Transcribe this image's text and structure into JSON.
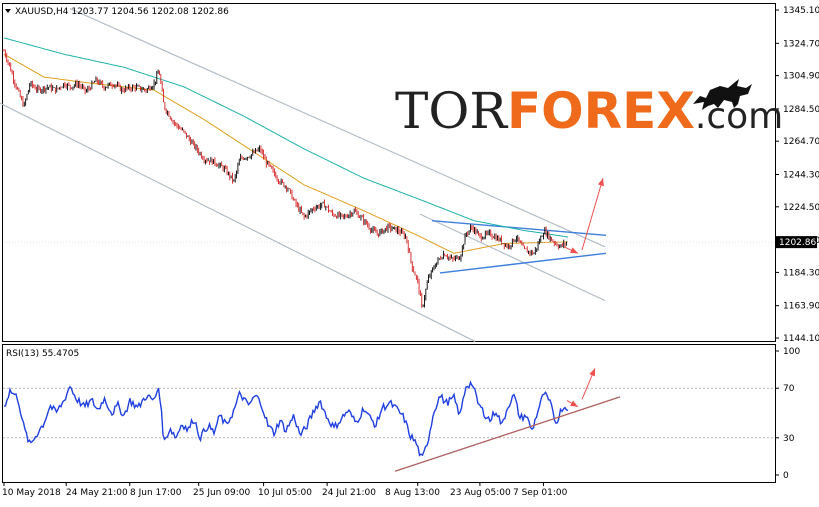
{
  "chart_data": [
    {
      "type": "line",
      "subtype": "candlestick",
      "title": "XAUUSD,H4  1203.77 1204.56 1202.08 1202.86",
      "symbol": "XAUUSD,H4",
      "ohlc": {
        "open": 1203.77,
        "high": 1204.56,
        "low": 1202.08,
        "close": 1202.86
      },
      "current_price_label": "1202.86",
      "ylim": [
        1144.1,
        1345.1
      ],
      "y_ticks": [
        "1345.10",
        "1324.70",
        "1304.90",
        "1284.50",
        "1264.70",
        "1244.30",
        "1224.50",
        "1204.10",
        "1184.30",
        "1163.90",
        "1144.10"
      ],
      "x_ticks": [
        "10 May 2018",
        "24 May 21:00",
        "8 Jun 17:00",
        "25 Jun 09:00",
        "10 Jul 05:00",
        "24 Jul 21:00",
        "8 Aug 13:00",
        "23 Aug 05:00",
        "7 Sep 01:00"
      ],
      "price_anchors": [
        [
          0,
          1320
        ],
        [
          6,
          1310
        ],
        [
          10,
          1302
        ],
        [
          16,
          1292
        ],
        [
          20,
          1286
        ],
        [
          26,
          1300
        ],
        [
          34,
          1296
        ],
        [
          44,
          1298
        ],
        [
          52,
          1296
        ],
        [
          60,
          1300
        ],
        [
          66,
          1298
        ],
        [
          74,
          1300
        ],
        [
          82,
          1295
        ],
        [
          92,
          1302
        ],
        [
          100,
          1298
        ],
        [
          110,
          1300
        ],
        [
          118,
          1296
        ],
        [
          130,
          1298
        ],
        [
          142,
          1296
        ],
        [
          150,
          1300
        ],
        [
          155,
          1308
        ],
        [
          160,
          1286
        ],
        [
          170,
          1276
        ],
        [
          180,
          1270
        ],
        [
          190,
          1262
        ],
        [
          200,
          1254
        ],
        [
          210,
          1252
        ],
        [
          220,
          1248
        ],
        [
          230,
          1240
        ],
        [
          236,
          1254
        ],
        [
          246,
          1256
        ],
        [
          256,
          1260
        ],
        [
          262,
          1252
        ],
        [
          270,
          1245
        ],
        [
          276,
          1240
        ],
        [
          284,
          1236
        ],
        [
          290,
          1228
        ],
        [
          300,
          1218
        ],
        [
          310,
          1224
        ],
        [
          320,
          1226
        ],
        [
          328,
          1220
        ],
        [
          340,
          1218
        ],
        [
          350,
          1222
        ],
        [
          360,
          1216
        ],
        [
          368,
          1210
        ],
        [
          374,
          1208
        ],
        [
          384,
          1212
        ],
        [
          394,
          1210
        ],
        [
          402,
          1206
        ],
        [
          408,
          1188
        ],
        [
          414,
          1178
        ],
        [
          418,
          1162
        ],
        [
          424,
          1180
        ],
        [
          432,
          1190
        ],
        [
          440,
          1196
        ],
        [
          448,
          1192
        ],
        [
          456,
          1194
        ],
        [
          462,
          1208
        ],
        [
          468,
          1212
        ],
        [
          476,
          1206
        ],
        [
          486,
          1208
        ],
        [
          496,
          1204
        ],
        [
          504,
          1200
        ],
        [
          512,
          1206
        ],
        [
          520,
          1198
        ],
        [
          530,
          1196
        ],
        [
          540,
          1210
        ],
        [
          548,
          1204
        ],
        [
          556,
          1200
        ],
        [
          564,
          1203
        ]
      ],
      "moving_averages": [
        {
          "color": "#e0a020",
          "anchors": [
            [
              0,
              1318
            ],
            [
              40,
              1304
            ],
            [
              90,
              1300
            ],
            [
              150,
              1296
            ],
            [
              200,
              1278
            ],
            [
              250,
              1258
            ],
            [
              300,
              1238
            ],
            [
              360,
              1222
            ],
            [
              410,
              1208
            ],
            [
              450,
              1196
            ],
            [
              500,
              1202
            ],
            [
              564,
              1203
            ]
          ]
        },
        {
          "color": "#20b2aa",
          "anchors": [
            [
              0,
              1328
            ],
            [
              60,
              1318
            ],
            [
              120,
              1310
            ],
            [
              180,
              1298
            ],
            [
              240,
              1280
            ],
            [
              300,
              1260
            ],
            [
              360,
              1242
            ],
            [
              420,
              1228
            ],
            [
              470,
              1216
            ],
            [
              520,
              1210
            ],
            [
              564,
              1206
            ]
          ]
        }
      ],
      "trend_lines": [
        {
          "color": "#b4bec8",
          "from": [
            70,
            1346
          ],
          "to": [
            605,
            1200
          ]
        },
        {
          "color": "#b4bec8",
          "from": [
            0,
            1288
          ],
          "to": [
            475,
            1142
          ]
        },
        {
          "color": "#b4bec8",
          "from": [
            420,
            1220
          ],
          "to": [
            605,
            1167
          ]
        },
        {
          "color": "#3f7fdc",
          "from": [
            432,
            1216
          ],
          "to": [
            606,
            1207
          ]
        },
        {
          "color": "#3f7fdc",
          "from": [
            440,
            1184
          ],
          "to": [
            606,
            1196
          ]
        }
      ],
      "forecast_arrows": [
        {
          "color": "#f05050",
          "from": [
            564,
            1200
          ],
          "to": [
            578,
            1196
          ]
        },
        {
          "color": "#f05050",
          "from": [
            582,
            1198
          ],
          "to": [
            603,
            1242
          ]
        }
      ]
    },
    {
      "type": "line",
      "title": "RSI(13) 55.4705",
      "indicator": "RSI(13)",
      "value": 55.4705,
      "ylim": [
        0,
        100
      ],
      "y_ticks": [
        "100",
        "70",
        "30",
        "0"
      ],
      "levels": [
        70,
        30
      ],
      "rsi_anchors": [
        [
          0,
          55
        ],
        [
          6,
          68
        ],
        [
          14,
          62
        ],
        [
          20,
          38
        ],
        [
          26,
          24
        ],
        [
          32,
          32
        ],
        [
          40,
          42
        ],
        [
          46,
          56
        ],
        [
          52,
          50
        ],
        [
          60,
          60
        ],
        [
          66,
          72
        ],
        [
          72,
          62
        ],
        [
          80,
          55
        ],
        [
          88,
          60
        ],
        [
          94,
          52
        ],
        [
          100,
          62
        ],
        [
          108,
          50
        ],
        [
          114,
          56
        ],
        [
          120,
          48
        ],
        [
          126,
          60
        ],
        [
          134,
          54
        ],
        [
          142,
          64
        ],
        [
          150,
          60
        ],
        [
          155,
          72
        ],
        [
          160,
          26
        ],
        [
          166,
          38
        ],
        [
          172,
          30
        ],
        [
          178,
          42
        ],
        [
          184,
          36
        ],
        [
          190,
          46
        ],
        [
          196,
          30
        ],
        [
          204,
          40
        ],
        [
          210,
          34
        ],
        [
          216,
          48
        ],
        [
          222,
          40
        ],
        [
          230,
          52
        ],
        [
          236,
          66
        ],
        [
          244,
          56
        ],
        [
          252,
          64
        ],
        [
          258,
          56
        ],
        [
          264,
          40
        ],
        [
          270,
          34
        ],
        [
          276,
          44
        ],
        [
          282,
          36
        ],
        [
          290,
          48
        ],
        [
          296,
          32
        ],
        [
          302,
          38
        ],
        [
          310,
          52
        ],
        [
          316,
          60
        ],
        [
          322,
          48
        ],
        [
          330,
          38
        ],
        [
          336,
          44
        ],
        [
          344,
          52
        ],
        [
          352,
          42
        ],
        [
          360,
          54
        ],
        [
          366,
          46
        ],
        [
          372,
          40
        ],
        [
          378,
          54
        ],
        [
          386,
          58
        ],
        [
          394,
          52
        ],
        [
          400,
          46
        ],
        [
          406,
          32
        ],
        [
          412,
          26
        ],
        [
          418,
          12
        ],
        [
          424,
          28
        ],
        [
          430,
          52
        ],
        [
          436,
          64
        ],
        [
          442,
          58
        ],
        [
          450,
          62
        ],
        [
          456,
          48
        ],
        [
          462,
          72
        ],
        [
          468,
          74
        ],
        [
          474,
          58
        ],
        [
          480,
          50
        ],
        [
          486,
          44
        ],
        [
          492,
          52
        ],
        [
          498,
          40
        ],
        [
          504,
          56
        ],
        [
          510,
          64
        ],
        [
          516,
          46
        ],
        [
          522,
          48
        ],
        [
          528,
          36
        ],
        [
          534,
          52
        ],
        [
          540,
          66
        ],
        [
          546,
          58
        ],
        [
          552,
          42
        ],
        [
          558,
          54
        ],
        [
          564,
          55
        ]
      ],
      "trend_lines": [
        {
          "color": "#b06060",
          "from": [
            395,
            3
          ],
          "to": [
            620,
            63
          ]
        }
      ],
      "forecast_arrows": [
        {
          "color": "#f05050",
          "from": [
            567,
            60
          ],
          "to": [
            578,
            55
          ]
        },
        {
          "color": "#f05050",
          "from": [
            582,
            61
          ],
          "to": [
            595,
            86
          ]
        }
      ]
    }
  ],
  "watermark": {
    "part1": "TOR",
    "part2": "FOREX",
    "part3": ".com"
  },
  "colors": {
    "bull_candle": "#000000",
    "bear_candle": "#d21e1e",
    "rsi_line": "#1f3fe0",
    "level_line": "#b4b4b4"
  }
}
